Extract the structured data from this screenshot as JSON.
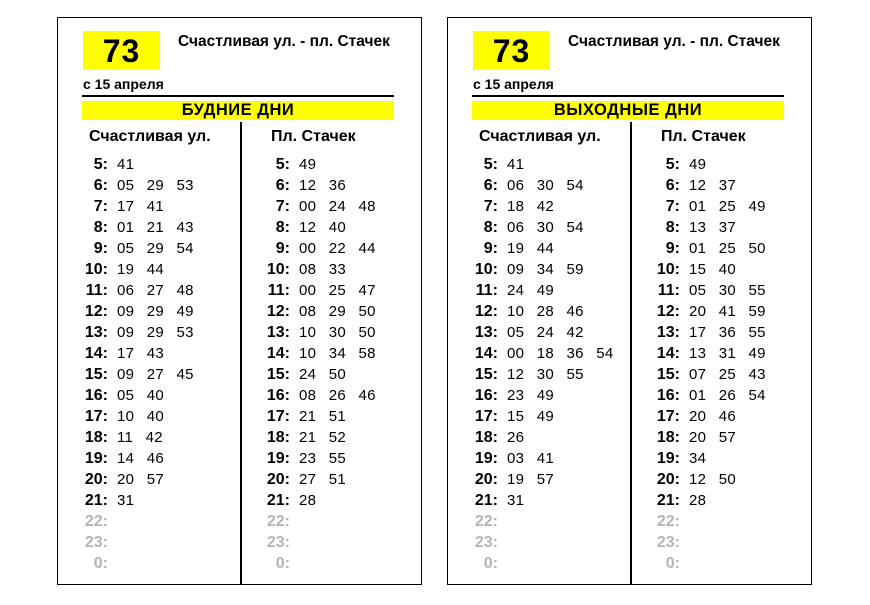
{
  "colors": {
    "accent": "#ffff00",
    "muted_text": "#b4b4b4",
    "text": "#000000"
  },
  "panels": [
    {
      "route_number": "73",
      "route_title": "Счастливая ул. - пл. Стачек",
      "valid_from": "с 15 апреля",
      "day_type": "БУДНИЕ ДНИ",
      "columns": [
        {
          "stop_name": "Счастливая ул.",
          "rows": [
            {
              "hour": "5:",
              "minutes": "41"
            },
            {
              "hour": "6:",
              "minutes": "05 29 53"
            },
            {
              "hour": "7:",
              "minutes": "17 41"
            },
            {
              "hour": "8:",
              "minutes": "01 21 43"
            },
            {
              "hour": "9:",
              "minutes": "05 29 54"
            },
            {
              "hour": "10:",
              "minutes": "19 44"
            },
            {
              "hour": "11:",
              "minutes": "06 27 48"
            },
            {
              "hour": "12:",
              "minutes": "09 29 49"
            },
            {
              "hour": "13:",
              "minutes": "09 29 53"
            },
            {
              "hour": "14:",
              "minutes": "17 43"
            },
            {
              "hour": "15:",
              "minutes": "09 27 45"
            },
            {
              "hour": "16:",
              "minutes": "05 40"
            },
            {
              "hour": "17:",
              "minutes": "10 40"
            },
            {
              "hour": "18:",
              "minutes": "11 42"
            },
            {
              "hour": "19:",
              "minutes": "14 46"
            },
            {
              "hour": "20:",
              "minutes": "20 57"
            },
            {
              "hour": "21:",
              "minutes": "31"
            },
            {
              "hour": "22:",
              "minutes": "",
              "muted": true
            },
            {
              "hour": "23:",
              "minutes": "",
              "muted": true
            },
            {
              "hour": "0:",
              "minutes": "",
              "muted": true
            }
          ]
        },
        {
          "stop_name": "Пл. Стачек",
          "rows": [
            {
              "hour": "5:",
              "minutes": "49"
            },
            {
              "hour": "6:",
              "minutes": "12 36"
            },
            {
              "hour": "7:",
              "minutes": "00 24 48"
            },
            {
              "hour": "8:",
              "minutes": "12 40"
            },
            {
              "hour": "9:",
              "minutes": "00 22 44"
            },
            {
              "hour": "10:",
              "minutes": "08 33"
            },
            {
              "hour": "11:",
              "minutes": "00 25 47"
            },
            {
              "hour": "12:",
              "minutes": "08 29 50"
            },
            {
              "hour": "13:",
              "minutes": "10 30 50"
            },
            {
              "hour": "14:",
              "minutes": "10 34 58"
            },
            {
              "hour": "15:",
              "minutes": "24 50"
            },
            {
              "hour": "16:",
              "minutes": "08 26 46"
            },
            {
              "hour": "17:",
              "minutes": "21 51"
            },
            {
              "hour": "18:",
              "minutes": "21 52"
            },
            {
              "hour": "19:",
              "minutes": "23 55"
            },
            {
              "hour": "20:",
              "minutes": "27 51"
            },
            {
              "hour": "21:",
              "minutes": "28"
            },
            {
              "hour": "22:",
              "minutes": "",
              "muted": true
            },
            {
              "hour": "23:",
              "minutes": "",
              "muted": true
            },
            {
              "hour": "0:",
              "minutes": "",
              "muted": true
            }
          ]
        }
      ]
    },
    {
      "route_number": "73",
      "route_title": "Счастливая ул. - пл. Стачек",
      "valid_from": "с 15 апреля",
      "day_type": "ВЫХОДНЫЕ ДНИ",
      "columns": [
        {
          "stop_name": "Счастливая ул.",
          "rows": [
            {
              "hour": "5:",
              "minutes": "41"
            },
            {
              "hour": "6:",
              "minutes": "06 30 54"
            },
            {
              "hour": "7:",
              "minutes": "18 42"
            },
            {
              "hour": "8:",
              "minutes": "06 30 54"
            },
            {
              "hour": "9:",
              "minutes": "19 44"
            },
            {
              "hour": "10:",
              "minutes": "09 34 59"
            },
            {
              "hour": "11:",
              "minutes": "24 49"
            },
            {
              "hour": "12:",
              "minutes": "10 28 46"
            },
            {
              "hour": "13:",
              "minutes": "05 24 42"
            },
            {
              "hour": "14:",
              "minutes": "00 18 36 54"
            },
            {
              "hour": "15:",
              "minutes": "12 30 55"
            },
            {
              "hour": "16:",
              "minutes": "23 49"
            },
            {
              "hour": "17:",
              "minutes": "15 49"
            },
            {
              "hour": "18:",
              "minutes": "26"
            },
            {
              "hour": "19:",
              "minutes": "03 41"
            },
            {
              "hour": "20:",
              "minutes": "19 57"
            },
            {
              "hour": "21:",
              "minutes": "31"
            },
            {
              "hour": "22:",
              "minutes": "",
              "muted": true
            },
            {
              "hour": "23:",
              "minutes": "",
              "muted": true
            },
            {
              "hour": "0:",
              "minutes": "",
              "muted": true
            }
          ]
        },
        {
          "stop_name": "Пл. Стачек",
          "rows": [
            {
              "hour": "5:",
              "minutes": "49"
            },
            {
              "hour": "6:",
              "minutes": "12 37"
            },
            {
              "hour": "7:",
              "minutes": "01 25 49"
            },
            {
              "hour": "8:",
              "minutes": "13 37"
            },
            {
              "hour": "9:",
              "minutes": "01 25 50"
            },
            {
              "hour": "10:",
              "minutes": "15 40"
            },
            {
              "hour": "11:",
              "minutes": "05 30 55"
            },
            {
              "hour": "12:",
              "minutes": "20 41 59"
            },
            {
              "hour": "13:",
              "minutes": "17 36 55"
            },
            {
              "hour": "14:",
              "minutes": "13 31 49"
            },
            {
              "hour": "15:",
              "minutes": "07 25 43"
            },
            {
              "hour": "16:",
              "minutes": "01 26 54"
            },
            {
              "hour": "17:",
              "minutes": "20 46"
            },
            {
              "hour": "18:",
              "minutes": "20 57"
            },
            {
              "hour": "19:",
              "minutes": "34"
            },
            {
              "hour": "20:",
              "minutes": "12 50"
            },
            {
              "hour": "21:",
              "minutes": "28"
            },
            {
              "hour": "22:",
              "minutes": "",
              "muted": true
            },
            {
              "hour": "23:",
              "minutes": "",
              "muted": true
            },
            {
              "hour": "0:",
              "minutes": "",
              "muted": true
            }
          ]
        }
      ]
    }
  ]
}
